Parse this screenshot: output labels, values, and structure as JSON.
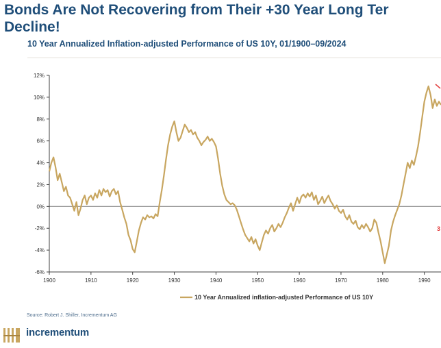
{
  "header": {
    "title": "Bonds Are Not Recovering from Their +30 Year Long Ter\nDecline!",
    "subtitle": "10 Year Annualized Inflation-adjusted Performance of US 10Y, 01/1900–09/2024"
  },
  "footer": {
    "source": "Source: Robert J. Shiller, Incrementum AG",
    "logo_text": "incrementum"
  },
  "colors": {
    "series": "#c8a660",
    "title": "#1f4e79",
    "annotation": "#e23a3a",
    "axis": "#404040",
    "zero_line": "#8f8f8f"
  },
  "chart_data": {
    "type": "line",
    "title": "10 Year Annualized Inflation-adjusted Performance of US 10Y, 01/1900–09/2024",
    "xlabel": "",
    "ylabel": "",
    "xlim": [
      1900,
      1994
    ],
    "ylim": [
      -6,
      12
    ],
    "x_ticks": [
      1900,
      1910,
      1920,
      1930,
      1940,
      1950,
      1960,
      1970,
      1980,
      1990
    ],
    "y_ticks": [
      12,
      10,
      8,
      6,
      4,
      2,
      0,
      -2,
      -4,
      -6
    ],
    "y_tick_labels": [
      "12%",
      "10%",
      "8%",
      "6%",
      "4%",
      "2%",
      "0%",
      "-2%",
      "-4%",
      "-6%"
    ],
    "legend": {
      "position": "bottom",
      "label": "10 Year Annualized inflation-adjusted Performance of US 10Y"
    },
    "annotations": [
      {
        "text": "3",
        "x": 1994,
        "y": -2.0
      }
    ],
    "series": [
      {
        "name": "10 Year Annualized inflation-adjusted Performance of US 10Y",
        "points": [
          [
            1900,
            3.2
          ],
          [
            1900.5,
            4.0
          ],
          [
            1901,
            4.5
          ],
          [
            1901.5,
            3.6
          ],
          [
            1902,
            2.4
          ],
          [
            1902.5,
            3.0
          ],
          [
            1903,
            2.2
          ],
          [
            1903.5,
            1.4
          ],
          [
            1904,
            1.8
          ],
          [
            1904.5,
            1.0
          ],
          [
            1905,
            0.8
          ],
          [
            1905.5,
            0.2
          ],
          [
            1906,
            -0.4
          ],
          [
            1906.5,
            0.4
          ],
          [
            1907,
            -0.8
          ],
          [
            1907.5,
            -0.2
          ],
          [
            1908,
            0.6
          ],
          [
            1908.5,
            1.0
          ],
          [
            1909,
            0.2
          ],
          [
            1909.5,
            0.8
          ],
          [
            1910,
            1.0
          ],
          [
            1910.5,
            0.6
          ],
          [
            1911,
            1.2
          ],
          [
            1911.5,
            0.8
          ],
          [
            1912,
            1.5
          ],
          [
            1912.5,
            1.0
          ],
          [
            1913,
            1.6
          ],
          [
            1913.5,
            1.3
          ],
          [
            1914,
            1.5
          ],
          [
            1914.5,
            0.9
          ],
          [
            1915,
            1.4
          ],
          [
            1915.5,
            1.6
          ],
          [
            1916,
            1.1
          ],
          [
            1916.5,
            1.4
          ],
          [
            1917,
            0.4
          ],
          [
            1917.5,
            -0.3
          ],
          [
            1918,
            -1.0
          ],
          [
            1918.5,
            -1.6
          ],
          [
            1919,
            -2.6
          ],
          [
            1919.5,
            -3.1
          ],
          [
            1920,
            -3.9
          ],
          [
            1920.5,
            -4.2
          ],
          [
            1921,
            -3.2
          ],
          [
            1921.5,
            -2.2
          ],
          [
            1922,
            -1.5
          ],
          [
            1922.5,
            -1.0
          ],
          [
            1923,
            -1.2
          ],
          [
            1923.5,
            -0.8
          ],
          [
            1924,
            -1.0
          ],
          [
            1924.5,
            -0.9
          ],
          [
            1925,
            -1.1
          ],
          [
            1925.5,
            -0.7
          ],
          [
            1926,
            -0.9
          ],
          [
            1926.5,
            0.4
          ],
          [
            1927,
            1.5
          ],
          [
            1927.5,
            2.8
          ],
          [
            1928,
            4.3
          ],
          [
            1928.5,
            5.6
          ],
          [
            1929,
            6.6
          ],
          [
            1929.5,
            7.3
          ],
          [
            1930,
            7.8
          ],
          [
            1930.5,
            6.8
          ],
          [
            1931,
            6.0
          ],
          [
            1931.5,
            6.3
          ],
          [
            1932,
            6.9
          ],
          [
            1932.5,
            7.5
          ],
          [
            1933,
            7.2
          ],
          [
            1933.5,
            6.8
          ],
          [
            1934,
            7.0
          ],
          [
            1934.5,
            6.6
          ],
          [
            1935,
            6.8
          ],
          [
            1935.5,
            6.3
          ],
          [
            1936,
            6.0
          ],
          [
            1936.5,
            5.6
          ],
          [
            1937,
            5.9
          ],
          [
            1937.5,
            6.1
          ],
          [
            1938,
            6.4
          ],
          [
            1938.5,
            6.0
          ],
          [
            1939,
            6.2
          ],
          [
            1939.5,
            5.9
          ],
          [
            1940,
            5.5
          ],
          [
            1940.5,
            4.4
          ],
          [
            1941,
            3.0
          ],
          [
            1941.5,
            1.9
          ],
          [
            1942,
            1.1
          ],
          [
            1942.5,
            0.6
          ],
          [
            1943,
            0.4
          ],
          [
            1943.5,
            0.2
          ],
          [
            1944,
            0.3
          ],
          [
            1944.5,
            0.1
          ],
          [
            1945,
            -0.3
          ],
          [
            1945.5,
            -0.9
          ],
          [
            1946,
            -1.5
          ],
          [
            1946.5,
            -2.1
          ],
          [
            1947,
            -2.6
          ],
          [
            1947.5,
            -2.9
          ],
          [
            1948,
            -3.2
          ],
          [
            1948.5,
            -2.8
          ],
          [
            1949,
            -3.4
          ],
          [
            1949.5,
            -3.0
          ],
          [
            1950,
            -3.6
          ],
          [
            1950.5,
            -4.0
          ],
          [
            1951,
            -3.3
          ],
          [
            1951.5,
            -2.6
          ],
          [
            1952,
            -2.2
          ],
          [
            1952.5,
            -2.5
          ],
          [
            1953,
            -2.0
          ],
          [
            1953.5,
            -1.7
          ],
          [
            1954,
            -2.3
          ],
          [
            1954.5,
            -2.0
          ],
          [
            1955,
            -1.6
          ],
          [
            1955.5,
            -1.9
          ],
          [
            1956,
            -1.5
          ],
          [
            1956.5,
            -1.0
          ],
          [
            1957,
            -0.6
          ],
          [
            1957.5,
            -0.1
          ],
          [
            1958,
            0.3
          ],
          [
            1958.5,
            -0.4
          ],
          [
            1959,
            0.2
          ],
          [
            1959.5,
            0.8
          ],
          [
            1960,
            0.3
          ],
          [
            1960.5,
            0.9
          ],
          [
            1961,
            1.1
          ],
          [
            1961.5,
            0.8
          ],
          [
            1962,
            1.2
          ],
          [
            1962.5,
            0.9
          ],
          [
            1963,
            1.3
          ],
          [
            1963.5,
            0.6
          ],
          [
            1964,
            1.0
          ],
          [
            1964.5,
            0.2
          ],
          [
            1965,
            0.5
          ],
          [
            1965.5,
            0.9
          ],
          [
            1966,
            0.3
          ],
          [
            1966.5,
            0.7
          ],
          [
            1967,
            1.0
          ],
          [
            1967.5,
            0.5
          ],
          [
            1968,
            0.2
          ],
          [
            1968.5,
            -0.2
          ],
          [
            1969,
            0.1
          ],
          [
            1969.5,
            -0.4
          ],
          [
            1970,
            -0.6
          ],
          [
            1970.5,
            -0.3
          ],
          [
            1971,
            -0.9
          ],
          [
            1971.5,
            -1.2
          ],
          [
            1972,
            -0.8
          ],
          [
            1972.5,
            -1.4
          ],
          [
            1973,
            -1.6
          ],
          [
            1973.5,
            -1.3
          ],
          [
            1974,
            -1.9
          ],
          [
            1974.5,
            -2.1
          ],
          [
            1975,
            -1.7
          ],
          [
            1975.5,
            -2.0
          ],
          [
            1976,
            -1.6
          ],
          [
            1976.5,
            -1.9
          ],
          [
            1977,
            -2.3
          ],
          [
            1977.5,
            -2.0
          ],
          [
            1978,
            -1.2
          ],
          [
            1978.5,
            -1.5
          ],
          [
            1979,
            -2.4
          ],
          [
            1979.5,
            -3.2
          ],
          [
            1980,
            -4.2
          ],
          [
            1980.5,
            -5.2
          ],
          [
            1981,
            -4.4
          ],
          [
            1981.5,
            -3.6
          ],
          [
            1982,
            -2.2
          ],
          [
            1982.5,
            -1.4
          ],
          [
            1983,
            -0.8
          ],
          [
            1983.5,
            -0.3
          ],
          [
            1984,
            0.2
          ],
          [
            1984.5,
            1.0
          ],
          [
            1985,
            2.0
          ],
          [
            1985.5,
            3.0
          ],
          [
            1986,
            4.0
          ],
          [
            1986.5,
            3.5
          ],
          [
            1987,
            4.2
          ],
          [
            1987.5,
            3.8
          ],
          [
            1988,
            4.6
          ],
          [
            1988.5,
            5.5
          ],
          [
            1989,
            6.8
          ],
          [
            1989.5,
            8.2
          ],
          [
            1990,
            9.6
          ],
          [
            1990.5,
            10.4
          ],
          [
            1991,
            11.0
          ],
          [
            1991.5,
            10.2
          ],
          [
            1992,
            9.0
          ],
          [
            1992.5,
            9.8
          ],
          [
            1993,
            9.2
          ],
          [
            1993.5,
            9.6
          ],
          [
            1994,
            9.3
          ]
        ]
      }
    ]
  }
}
